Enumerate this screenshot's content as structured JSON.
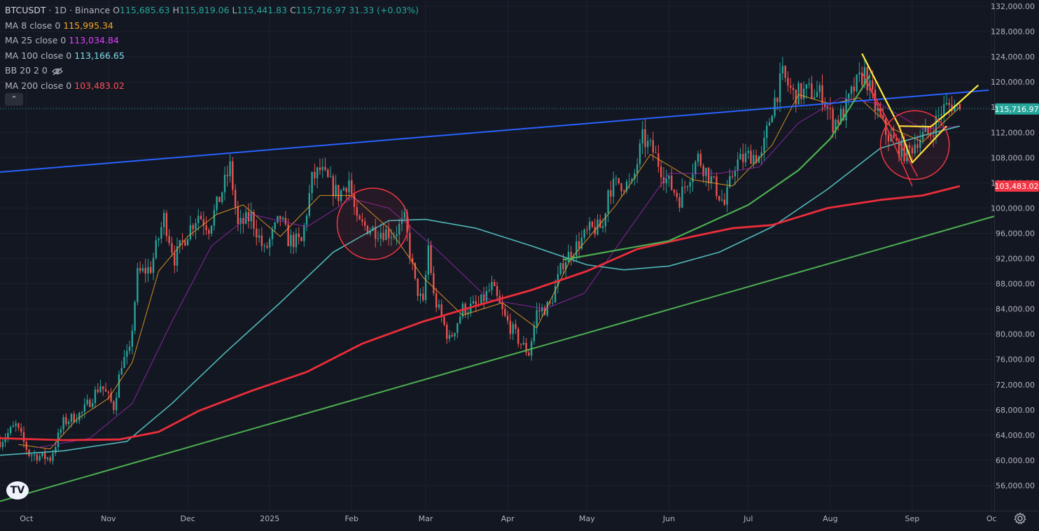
{
  "header": {
    "symbol": "BTCUSDT",
    "interval": "1D",
    "exchange": "Binance",
    "sep": "·",
    "open_key": "O",
    "open": "115,685.63",
    "high_key": "H",
    "high": "115,819.06",
    "low_key": "L",
    "low": "115,441.83",
    "close_key": "C",
    "close": "115,716.97",
    "change": "31.33 (+0.03%)"
  },
  "indicators": [
    {
      "label": "MA 8 close 0",
      "value": "115,995.34",
      "color": "#f5a623"
    },
    {
      "label": "MA 25 close 0",
      "value": "113,034.84",
      "color": "#e040fb"
    },
    {
      "label": "MA 100 close 0",
      "value": "113,166.65",
      "color": "#80deea"
    },
    {
      "label": "BB 20 2 0",
      "value": "",
      "color": "#b2b5be"
    },
    {
      "label": "MA 200 close 0",
      "value": "103,483.02",
      "color": "#ff4d57"
    }
  ],
  "colors": {
    "background": "#131722",
    "up": "#26a69a",
    "down": "#ef5350",
    "ma8": "#f5a623",
    "ma25": "#9c27b0",
    "ma100": "#4fb8b8",
    "ma200": "#ec2d3a",
    "blue_trend": "#2962ff",
    "green_trend": "#4caf50",
    "yellow_pattern": "#ffeb3b",
    "circle": "#f23645"
  },
  "collapse_label": "⌃",
  "logo_label": "TV",
  "chart_data": {
    "type": "candlestick",
    "y_axis": {
      "ticks": [
        56000,
        60000,
        64000,
        68000,
        72000,
        76000,
        80000,
        84000,
        88000,
        92000,
        96000,
        100000,
        104000,
        108000,
        112000,
        116000,
        120000,
        124000,
        128000,
        132000
      ],
      "tick_labels": [
        "56,000.00",
        "60,000.00",
        "64,000.00",
        "68,000.00",
        "72,000.00",
        "76,000.00",
        "80,000.00",
        "84,000.00",
        "88,000.00",
        "92,000.00",
        "96,000.00",
        "100,000.00",
        "104,000.00",
        "108,000.00",
        "112,000.00",
        "116,000.00",
        "120,000.00",
        "124,000.00",
        "128,000.00",
        "132,000.00"
      ],
      "range": [
        52000,
        133000
      ]
    },
    "x_axis": {
      "ticks": [
        "2024-10-01",
        "2024-11-01",
        "2024-12-01",
        "2025-01-01",
        "2025-02-01",
        "2025-03-01",
        "2025-04-01",
        "2025-05-01",
        "2025-06-01",
        "2025-07-01",
        "2025-08-01",
        "2025-09-01",
        "2025-10-01"
      ],
      "tick_labels": [
        "Oct",
        "Nov",
        "Dec",
        "2025",
        "Feb",
        "Mar",
        "Apr",
        "May",
        "Jun",
        "Jul",
        "Aug",
        "Sep",
        "Oc"
      ],
      "range": [
        "2024-09-21",
        "2025-10-02"
      ]
    },
    "last_price_label": {
      "value": 115716.97,
      "text": "115,716.97",
      "color": "#26a69a"
    },
    "ma200_price_label": {
      "value": 103483.02,
      "text": "103,483.02",
      "color": "#f23645"
    },
    "price_path": [
      [
        "2024-09-21",
        63000
      ],
      [
        "2024-09-27",
        65500
      ],
      [
        "2024-10-02",
        61000
      ],
      [
        "2024-10-10",
        60300
      ],
      [
        "2024-10-15",
        66000
      ],
      [
        "2024-10-22",
        67500
      ],
      [
        "2024-10-29",
        72000
      ],
      [
        "2024-11-03",
        68500
      ],
      [
        "2024-11-06",
        75500
      ],
      [
        "2024-11-09",
        77000
      ],
      [
        "2024-11-12",
        89500
      ],
      [
        "2024-11-17",
        90500
      ],
      [
        "2024-11-22",
        98500
      ],
      [
        "2024-11-26",
        92000
      ],
      [
        "2024-12-02",
        97000
      ],
      [
        "2024-12-05",
        99000
      ],
      [
        "2024-12-09",
        97000
      ],
      [
        "2024-12-13",
        101500
      ],
      [
        "2024-12-17",
        106500
      ],
      [
        "2024-12-20",
        97000
      ],
      [
        "2024-12-25",
        98700
      ],
      [
        "2024-12-30",
        93000
      ],
      [
        "2025-01-05",
        98500
      ],
      [
        "2025-01-08",
        95000
      ],
      [
        "2025-01-13",
        94500
      ],
      [
        "2025-01-17",
        104500
      ],
      [
        "2025-01-20",
        106000
      ],
      [
        "2025-01-27",
        102000
      ],
      [
        "2025-01-31",
        104500
      ],
      [
        "2025-02-03",
        97500
      ],
      [
        "2025-02-10",
        96500
      ],
      [
        "2025-02-17",
        96000
      ],
      [
        "2025-02-21",
        98000
      ],
      [
        "2025-02-25",
        88000
      ],
      [
        "2025-02-28",
        84500
      ],
      [
        "2025-03-02",
        94000
      ],
      [
        "2025-03-04",
        86000
      ],
      [
        "2025-03-10",
        79000
      ],
      [
        "2025-03-15",
        84000
      ],
      [
        "2025-03-21",
        84500
      ],
      [
        "2025-03-26",
        87500
      ],
      [
        "2025-03-31",
        82500
      ],
      [
        "2025-04-06",
        78500
      ],
      [
        "2025-04-09",
        77000
      ],
      [
        "2025-04-12",
        83500
      ],
      [
        "2025-04-17",
        84500
      ],
      [
        "2025-04-22",
        91500
      ],
      [
        "2025-04-28",
        94500
      ],
      [
        "2025-05-02",
        96500
      ],
      [
        "2025-05-07",
        97000
      ],
      [
        "2025-05-09",
        103000
      ],
      [
        "2025-05-13",
        104000
      ],
      [
        "2025-05-18",
        103500
      ],
      [
        "2025-05-22",
        111000
      ],
      [
        "2025-05-26",
        109000
      ],
      [
        "2025-05-31",
        104500
      ],
      [
        "2025-06-05",
        101500
      ],
      [
        "2025-06-09",
        105500
      ],
      [
        "2025-06-12",
        108000
      ],
      [
        "2025-06-17",
        104500
      ],
      [
        "2025-06-22",
        100500
      ],
      [
        "2025-06-26",
        107000
      ],
      [
        "2025-07-02",
        108500
      ],
      [
        "2025-07-06",
        108000
      ],
      [
        "2025-07-10",
        116000
      ],
      [
        "2025-07-14",
        121000
      ],
      [
        "2025-07-18",
        118000
      ],
      [
        "2025-07-24",
        118500
      ],
      [
        "2025-07-29",
        118000
      ],
      [
        "2025-08-02",
        113500
      ],
      [
        "2025-08-06",
        115000
      ],
      [
        "2025-08-10",
        119000
      ],
      [
        "2025-08-14",
        121500
      ],
      [
        "2025-08-18",
        116000
      ],
      [
        "2025-08-22",
        112000
      ],
      [
        "2025-08-26",
        110000
      ],
      [
        "2025-08-30",
        108500
      ],
      [
        "2025-09-03",
        111000
      ],
      [
        "2025-09-08",
        112000
      ],
      [
        "2025-09-12",
        115500
      ],
      [
        "2025-09-16",
        116500
      ],
      [
        "2025-09-19",
        115700
      ]
    ],
    "series": [
      {
        "name": "MA 8 close 0",
        "key": "ma8",
        "points": [
          [
            "2024-09-28",
            62500
          ],
          [
            "2024-10-10",
            61800
          ],
          [
            "2024-10-20",
            66500
          ],
          [
            "2024-11-01",
            69800
          ],
          [
            "2024-11-10",
            75500
          ],
          [
            "2024-11-20",
            90000
          ],
          [
            "2024-12-01",
            95500
          ],
          [
            "2024-12-12",
            99000
          ],
          [
            "2024-12-22",
            100500
          ],
          [
            "2025-01-05",
            95500
          ],
          [
            "2025-01-20",
            102000
          ],
          [
            "2025-02-01",
            102000
          ],
          [
            "2025-02-15",
            96800
          ],
          [
            "2025-02-28",
            89000
          ],
          [
            "2025-03-15",
            83000
          ],
          [
            "2025-03-30",
            85000
          ],
          [
            "2025-04-12",
            81000
          ],
          [
            "2025-04-25",
            92000
          ],
          [
            "2025-05-12",
            100500
          ],
          [
            "2025-05-25",
            108500
          ],
          [
            "2025-06-10",
            104500
          ],
          [
            "2025-06-25",
            103500
          ],
          [
            "2025-07-10",
            110000
          ],
          [
            "2025-07-20",
            118000
          ],
          [
            "2025-08-01",
            116500
          ],
          [
            "2025-08-12",
            117500
          ],
          [
            "2025-08-25",
            112500
          ],
          [
            "2025-09-05",
            110500
          ],
          [
            "2025-09-19",
            116000
          ]
        ]
      },
      {
        "name": "MA 25 close 0",
        "key": "ma25",
        "points": [
          [
            "2024-10-05",
            62000
          ],
          [
            "2024-10-25",
            63500
          ],
          [
            "2024-11-10",
            69000
          ],
          [
            "2024-11-25",
            82000
          ],
          [
            "2024-12-10",
            94000
          ],
          [
            "2024-12-25",
            99000
          ],
          [
            "2025-01-15",
            97000
          ],
          [
            "2025-02-01",
            101500
          ],
          [
            "2025-02-15",
            100000
          ],
          [
            "2025-03-05",
            93500
          ],
          [
            "2025-03-25",
            85500
          ],
          [
            "2025-04-15",
            84000
          ],
          [
            "2025-04-30",
            86500
          ],
          [
            "2025-05-15",
            95500
          ],
          [
            "2025-06-01",
            105500
          ],
          [
            "2025-06-20",
            105500
          ],
          [
            "2025-07-05",
            106500
          ],
          [
            "2025-07-20",
            113500
          ],
          [
            "2025-08-05",
            117500
          ],
          [
            "2025-08-20",
            116500
          ],
          [
            "2025-09-05",
            112500
          ],
          [
            "2025-09-19",
            113000
          ]
        ]
      },
      {
        "name": "MA 100 close 0",
        "key": "ma100",
        "points": [
          [
            "2024-09-21",
            60800
          ],
          [
            "2024-10-15",
            61500
          ],
          [
            "2024-11-08",
            63000
          ],
          [
            "2024-11-25",
            69000
          ],
          [
            "2024-12-15",
            77000
          ],
          [
            "2025-01-05",
            85000
          ],
          [
            "2025-01-25",
            93000
          ],
          [
            "2025-02-15",
            98000
          ],
          [
            "2025-03-01",
            98200
          ],
          [
            "2025-03-20",
            96800
          ],
          [
            "2025-04-10",
            94000
          ],
          [
            "2025-05-01",
            91000
          ],
          [
            "2025-05-15",
            90200
          ],
          [
            "2025-06-01",
            90800
          ],
          [
            "2025-06-20",
            93000
          ],
          [
            "2025-07-10",
            97000
          ],
          [
            "2025-07-31",
            103000
          ],
          [
            "2025-08-20",
            109500
          ],
          [
            "2025-09-05",
            111500
          ],
          [
            "2025-09-19",
            113000
          ]
        ]
      },
      {
        "name": "MA 200 close 0",
        "key": "ma200",
        "points": [
          [
            "2024-09-21",
            63500
          ],
          [
            "2024-10-15",
            63200
          ],
          [
            "2024-11-05",
            63300
          ],
          [
            "2024-11-20",
            64500
          ],
          [
            "2024-12-05",
            67800
          ],
          [
            "2024-12-25",
            71000
          ],
          [
            "2025-01-15",
            74000
          ],
          [
            "2025-02-05",
            78500
          ],
          [
            "2025-02-28",
            82000
          ],
          [
            "2025-03-20",
            84500
          ],
          [
            "2025-04-10",
            87000
          ],
          [
            "2025-05-01",
            90000
          ],
          [
            "2025-05-20",
            93500
          ],
          [
            "2025-06-10",
            95500
          ],
          [
            "2025-06-25",
            96800
          ],
          [
            "2025-07-10",
            97300
          ],
          [
            "2025-07-31",
            100000
          ],
          [
            "2025-08-20",
            101300
          ],
          [
            "2025-09-05",
            102000
          ],
          [
            "2025-09-19",
            103483
          ]
        ]
      }
    ],
    "trend_lines": [
      {
        "key": "blue_trend",
        "from": [
          "2024-09-21",
          105700
        ],
        "to": [
          "2025-09-30",
          118700
        ]
      },
      {
        "key": "green_trend",
        "from": [
          "2024-09-21",
          53500
        ],
        "to": [
          "2025-10-02",
          98700
        ]
      },
      {
        "key": "green_trend",
        "curve": [
          [
            "2025-04-22",
            91800
          ],
          [
            "2025-06-01",
            94800
          ],
          [
            "2025-07-01",
            100500
          ],
          [
            "2025-07-20",
            106000
          ],
          [
            "2025-08-01",
            111000
          ],
          [
            "2025-08-10",
            117000
          ],
          [
            "2025-08-16",
            121000
          ]
        ]
      },
      {
        "key": "yellow_pattern",
        "path": [
          [
            "2025-08-13",
            124500
          ],
          [
            "2025-08-27",
            113000
          ],
          [
            "2025-09-08",
            112900
          ],
          [
            "2025-09-16",
            115700
          ],
          [
            "2025-09-26",
            119500
          ]
        ]
      },
      {
        "key": "yellow_pattern",
        "path": [
          [
            "2025-08-27",
            113000
          ],
          [
            "2025-09-01",
            107200
          ],
          [
            "2025-09-14",
            113000
          ]
        ]
      },
      {
        "key": "circle",
        "path": [
          [
            "2025-08-13",
            121500
          ],
          [
            "2025-09-03",
            105000
          ]
        ]
      },
      {
        "key": "circle",
        "path": [
          [
            "2025-08-16",
            119000
          ],
          [
            "2025-09-01",
            103500
          ]
        ]
      }
    ],
    "circles": [
      {
        "center": [
          "2025-02-09",
          97500
        ],
        "radius_days": 13.5
      },
      {
        "center": [
          "2025-09-02",
          110000
        ],
        "radius_days": 13
      }
    ]
  }
}
